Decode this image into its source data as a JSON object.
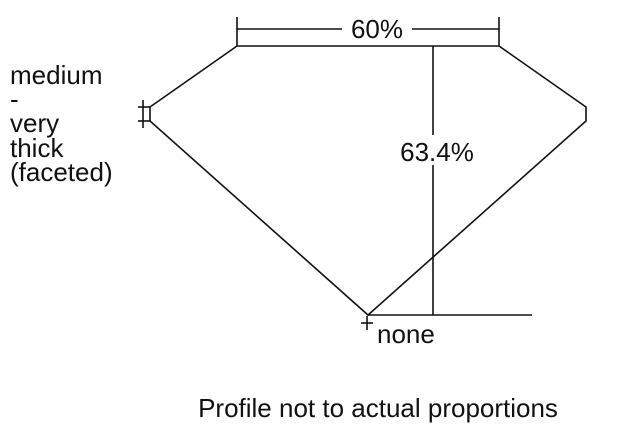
{
  "diagram": {
    "girdle_label_lines": [
      "medium",
      "-",
      "very",
      "thick",
      "(faceted)"
    ],
    "table_width": "60%",
    "total_depth": "63.4%",
    "culet_label": "none",
    "caption": "Profile not to actual proportions",
    "line_color": "#111111"
  }
}
